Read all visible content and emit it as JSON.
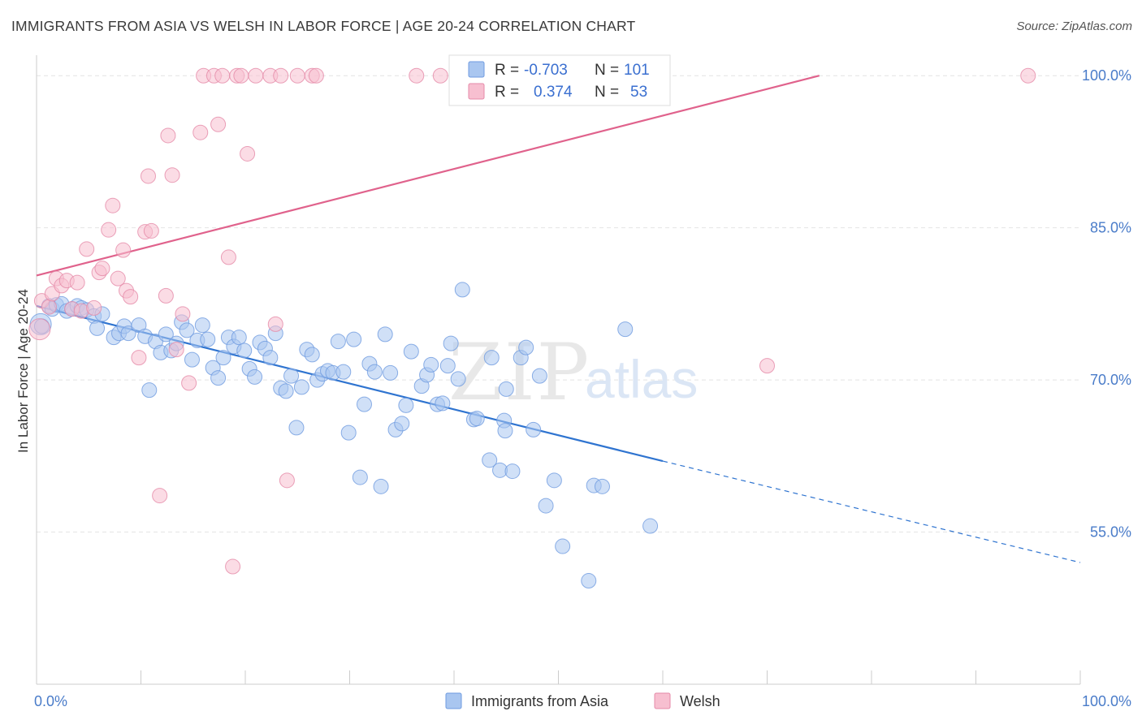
{
  "header": {
    "title": "IMMIGRANTS FROM ASIA VS WELSH IN LABOR FORCE | AGE 20-24 CORRELATION CHART",
    "source": "Source: ZipAtlas.com"
  },
  "watermark": {
    "zip": "ZIP",
    "atlas": "atlas"
  },
  "legend": {
    "r_label": "R =",
    "n_label": "N =",
    "rows": [
      {
        "r": "-0.703",
        "n": "101",
        "color": "#a9c6f0",
        "stroke": "#6f9be0"
      },
      {
        "r": "0.374",
        "n": "53",
        "color": "#f7bfd0",
        "stroke": "#e58aa8"
      }
    ]
  },
  "chart_data": {
    "type": "scatter",
    "title": "IMMIGRANTS FROM ASIA VS WELSH IN LABOR FORCE | AGE 20-24 CORRELATION CHART",
    "xlabel": "",
    "ylabel": "In Labor Force | Age 20-24",
    "xlim": [
      0,
      100
    ],
    "ylim": [
      40,
      102.5
    ],
    "x_tick_labels": [
      "0.0%",
      "100.0%"
    ],
    "y_ticks": [
      {
        "value": 55,
        "label": "55.0%"
      },
      {
        "value": 70,
        "label": "70.0%"
      },
      {
        "value": 85,
        "label": "85.0%"
      },
      {
        "value": 100,
        "label": "100.0%"
      }
    ],
    "grid": true,
    "legend_position": "top-center",
    "series": [
      {
        "name": "Immigrants from Asia",
        "color": "#a9c6f0",
        "stroke": "#6f9be0",
        "trend_color": "#2f74d0",
        "trend": {
          "x_start": 0,
          "y_start": 77.3,
          "x_solid_end": 60,
          "y_solid_end": 62.0,
          "x_end": 100,
          "y_end": 52.0
        },
        "points": [
          [
            0.4,
            75.5
          ],
          [
            0.5,
            75.3
          ],
          [
            1.2,
            77.3
          ],
          [
            1.5,
            77.0
          ],
          [
            1.9,
            77.4
          ],
          [
            2.4,
            77.5
          ],
          [
            2.9,
            76.8
          ],
          [
            3.4,
            77.0
          ],
          [
            3.9,
            77.3
          ],
          [
            4.3,
            77.1
          ],
          [
            4.8,
            76.9
          ],
          [
            5.5,
            76.3
          ],
          [
            6.3,
            76.5
          ],
          [
            5.8,
            75.1
          ],
          [
            7.4,
            74.2
          ],
          [
            7.9,
            74.6
          ],
          [
            8.4,
            75.3
          ],
          [
            8.8,
            74.6
          ],
          [
            9.8,
            75.4
          ],
          [
            10.4,
            74.3
          ],
          [
            10.8,
            69.0
          ],
          [
            11.4,
            73.8
          ],
          [
            11.9,
            72.7
          ],
          [
            12.4,
            74.5
          ],
          [
            12.9,
            72.9
          ],
          [
            13.4,
            73.6
          ],
          [
            13.9,
            75.7
          ],
          [
            14.4,
            74.9
          ],
          [
            14.9,
            72.0
          ],
          [
            15.4,
            73.9
          ],
          [
            15.9,
            75.4
          ],
          [
            16.4,
            74.0
          ],
          [
            16.9,
            71.2
          ],
          [
            17.4,
            70.2
          ],
          [
            17.9,
            72.2
          ],
          [
            18.4,
            74.2
          ],
          [
            18.9,
            73.3
          ],
          [
            19.4,
            74.2
          ],
          [
            19.9,
            72.9
          ],
          [
            20.4,
            71.1
          ],
          [
            20.9,
            70.3
          ],
          [
            21.4,
            73.7
          ],
          [
            21.9,
            73.1
          ],
          [
            22.4,
            72.2
          ],
          [
            22.9,
            74.6
          ],
          [
            23.4,
            69.2
          ],
          [
            23.9,
            68.9
          ],
          [
            24.4,
            70.4
          ],
          [
            24.9,
            65.3
          ],
          [
            25.4,
            69.3
          ],
          [
            25.9,
            73.0
          ],
          [
            26.4,
            72.5
          ],
          [
            26.9,
            70.0
          ],
          [
            27.4,
            70.6
          ],
          [
            27.9,
            70.9
          ],
          [
            28.4,
            70.7
          ],
          [
            28.9,
            73.8
          ],
          [
            29.4,
            70.8
          ],
          [
            29.9,
            64.8
          ],
          [
            30.4,
            74.0
          ],
          [
            31.0,
            60.4
          ],
          [
            31.4,
            67.6
          ],
          [
            31.9,
            71.6
          ],
          [
            32.4,
            70.8
          ],
          [
            33.0,
            59.5
          ],
          [
            33.4,
            74.5
          ],
          [
            33.9,
            70.7
          ],
          [
            34.4,
            65.1
          ],
          [
            35.0,
            65.7
          ],
          [
            35.4,
            67.5
          ],
          [
            35.9,
            72.8
          ],
          [
            36.9,
            69.4
          ],
          [
            37.4,
            70.5
          ],
          [
            37.8,
            71.5
          ],
          [
            38.4,
            67.6
          ],
          [
            38.9,
            67.7
          ],
          [
            39.4,
            71.4
          ],
          [
            39.7,
            73.6
          ],
          [
            40.4,
            70.1
          ],
          [
            40.8,
            78.9
          ],
          [
            41.9,
            66.1
          ],
          [
            42.2,
            66.2
          ],
          [
            43.4,
            62.1
          ],
          [
            43.6,
            72.2
          ],
          [
            44.4,
            61.1
          ],
          [
            44.8,
            66.0
          ],
          [
            45.0,
            69.1
          ],
          [
            45.6,
            61.0
          ],
          [
            46.4,
            72.2
          ],
          [
            46.9,
            73.2
          ],
          [
            47.6,
            65.1
          ],
          [
            48.8,
            57.6
          ],
          [
            50.4,
            53.6
          ],
          [
            52.9,
            50.2
          ],
          [
            53.4,
            59.6
          ],
          [
            54.2,
            59.5
          ],
          [
            56.4,
            75.0
          ],
          [
            58.8,
            55.6
          ],
          [
            49.6,
            60.1
          ],
          [
            48.2,
            70.4
          ],
          [
            44.9,
            65.0
          ]
        ]
      },
      {
        "name": "Welsh",
        "color": "#f7bfd0",
        "stroke": "#e58aa8",
        "trend_color": "#e0628c",
        "trend": {
          "x_start": 0,
          "y_start": 80.3,
          "x_end": 75,
          "y_end": 100.0
        },
        "points": [
          [
            0.3,
            75.0
          ],
          [
            0.5,
            77.8
          ],
          [
            1.2,
            77.2
          ],
          [
            1.5,
            78.5
          ],
          [
            1.9,
            80.0
          ],
          [
            2.4,
            79.3
          ],
          [
            2.9,
            79.8
          ],
          [
            3.4,
            77.0
          ],
          [
            3.9,
            79.6
          ],
          [
            4.3,
            76.8
          ],
          [
            4.8,
            82.9
          ],
          [
            5.5,
            77.1
          ],
          [
            6.0,
            80.6
          ],
          [
            6.3,
            81.0
          ],
          [
            6.9,
            84.8
          ],
          [
            7.3,
            87.2
          ],
          [
            7.8,
            80.0
          ],
          [
            8.3,
            82.8
          ],
          [
            8.6,
            78.8
          ],
          [
            9.0,
            78.2
          ],
          [
            9.8,
            72.2
          ],
          [
            10.4,
            84.6
          ],
          [
            10.7,
            90.1
          ],
          [
            11.0,
            84.7
          ],
          [
            11.8,
            58.6
          ],
          [
            12.4,
            78.3
          ],
          [
            12.6,
            94.1
          ],
          [
            13.0,
            90.2
          ],
          [
            13.4,
            73.0
          ],
          [
            14.0,
            76.5
          ],
          [
            14.6,
            69.7
          ],
          [
            15.7,
            94.4
          ],
          [
            16.0,
            100.0
          ],
          [
            17.0,
            100.0
          ],
          [
            17.4,
            95.2
          ],
          [
            17.8,
            100.0
          ],
          [
            18.4,
            82.1
          ],
          [
            18.8,
            51.6
          ],
          [
            19.2,
            100.0
          ],
          [
            19.6,
            100.0
          ],
          [
            20.2,
            92.3
          ],
          [
            21.0,
            100.0
          ],
          [
            22.4,
            100.0
          ],
          [
            22.9,
            75.5
          ],
          [
            23.4,
            100.0
          ],
          [
            24.0,
            60.1
          ],
          [
            25.0,
            100.0
          ],
          [
            26.4,
            100.0
          ],
          [
            26.8,
            100.0
          ],
          [
            36.4,
            100.0
          ],
          [
            38.7,
            100.0
          ],
          [
            70.0,
            71.4
          ],
          [
            95.0,
            100.0
          ]
        ]
      }
    ]
  },
  "bottom_legend": [
    {
      "label": "Immigrants from Asia",
      "color": "#a9c6f0",
      "stroke": "#6f9be0"
    },
    {
      "label": "Welsh",
      "color": "#f7bfd0",
      "stroke": "#e58aa8"
    }
  ]
}
